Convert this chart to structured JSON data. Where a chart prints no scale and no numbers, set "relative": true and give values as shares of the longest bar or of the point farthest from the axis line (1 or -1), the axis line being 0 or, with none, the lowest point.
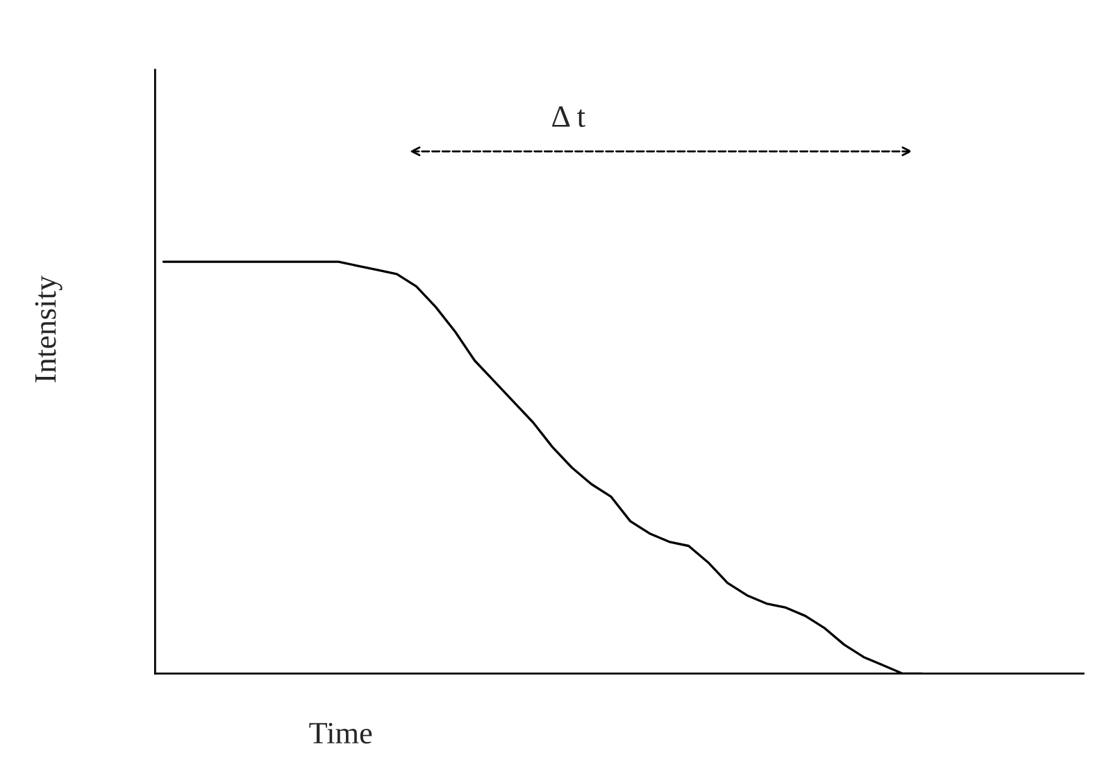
{
  "chart_data": {
    "type": "line",
    "relative": true,
    "xlabel": "Time",
    "ylabel": "Intensity",
    "color": "#000000",
    "line_style": "solid",
    "annotations": [
      "Δ t"
    ],
    "categories": [
      null,
      null,
      null,
      null,
      null,
      null,
      null,
      null,
      null,
      null,
      null,
      null,
      null,
      null,
      null,
      null,
      null,
      null,
      null,
      null,
      null,
      null,
      null,
      null,
      null,
      null,
      null,
      null,
      null,
      null,
      null,
      null,
      null,
      null,
      null,
      null,
      null,
      null,
      null,
      null,
      null,
      null,
      null,
      null,
      null,
      null,
      null,
      null
    ],
    "values": [
      1.0,
      1.0,
      1.0,
      1.0,
      1.0,
      1.0,
      1.0,
      1.0,
      1.0,
      1.0,
      0.99,
      0.98,
      0.97,
      0.94,
      0.89,
      0.83,
      0.76,
      0.71,
      0.66,
      0.61,
      0.55,
      0.5,
      0.46,
      0.43,
      0.37,
      0.34,
      0.32,
      0.31,
      0.27,
      0.22,
      0.19,
      0.17,
      0.16,
      0.14,
      0.11,
      0.07,
      0.04,
      0.02,
      0.0,
      0.0,
      null,
      null,
      null,
      null,
      null,
      null,
      null,
      null
    ]
  }
}
